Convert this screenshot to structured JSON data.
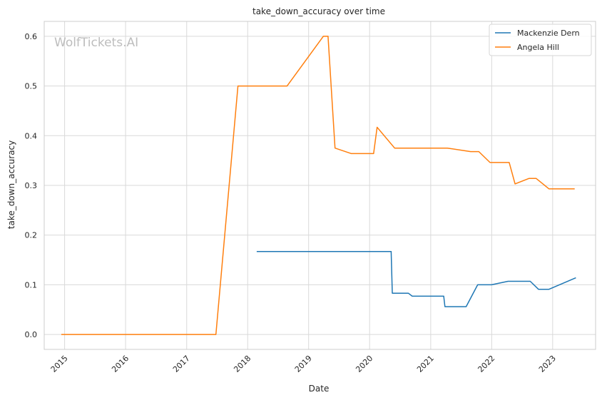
{
  "chart_data": {
    "type": "line",
    "title": "take_down_accuracy over time",
    "xlabel": "Date",
    "ylabel": "take_down_accuracy",
    "watermark": "WolfTickets.AI",
    "x_axis_type": "date",
    "xlim": [
      "2014-09-01",
      "2023-09-15"
    ],
    "ylim": [
      -0.03,
      0.63
    ],
    "x_ticks": [
      {
        "date": "2015-01-01",
        "label": "2015"
      },
      {
        "date": "2016-01-01",
        "label": "2016"
      },
      {
        "date": "2017-01-01",
        "label": "2017"
      },
      {
        "date": "2018-01-01",
        "label": "2018"
      },
      {
        "date": "2019-01-01",
        "label": "2019"
      },
      {
        "date": "2020-01-01",
        "label": "2020"
      },
      {
        "date": "2021-01-01",
        "label": "2021"
      },
      {
        "date": "2022-01-01",
        "label": "2022"
      },
      {
        "date": "2023-01-01",
        "label": "2023"
      }
    ],
    "y_ticks": [
      {
        "value": 0.0,
        "label": "0.0"
      },
      {
        "value": 0.1,
        "label": "0.1"
      },
      {
        "value": 0.2,
        "label": "0.2"
      },
      {
        "value": 0.3,
        "label": "0.3"
      },
      {
        "value": 0.4,
        "label": "0.4"
      },
      {
        "value": 0.5,
        "label": "0.5"
      },
      {
        "value": 0.6,
        "label": "0.6"
      }
    ],
    "grid": true,
    "legend_position": "top-right",
    "series": [
      {
        "name": "Mackenzie Dern",
        "color": "#1f77b4",
        "points": [
          [
            "2018-02-24",
            0.167
          ],
          [
            "2020-05-09",
            0.167
          ],
          [
            "2020-05-16",
            0.083
          ],
          [
            "2020-08-20",
            0.083
          ],
          [
            "2020-09-12",
            0.077
          ],
          [
            "2021-03-20",
            0.077
          ],
          [
            "2021-03-27",
            0.056
          ],
          [
            "2021-08-01",
            0.056
          ],
          [
            "2021-10-09",
            0.1
          ],
          [
            "2021-12-31",
            0.1
          ],
          [
            "2022-04-09",
            0.107
          ],
          [
            "2022-08-20",
            0.107
          ],
          [
            "2022-10-08",
            0.091
          ],
          [
            "2022-12-10",
            0.091
          ],
          [
            "2023-05-20",
            0.114
          ]
        ]
      },
      {
        "name": "Angela Hill",
        "color": "#ff7f0e",
        "points": [
          [
            "2014-12-12",
            0.0
          ],
          [
            "2017-06-25",
            0.0
          ],
          [
            "2017-11-04",
            0.5
          ],
          [
            "2018-08-25",
            0.5
          ],
          [
            "2019-03-30",
            0.6
          ],
          [
            "2019-04-27",
            0.6
          ],
          [
            "2019-06-08",
            0.375
          ],
          [
            "2019-09-14",
            0.364
          ],
          [
            "2020-01-25",
            0.364
          ],
          [
            "2020-02-15",
            0.417
          ],
          [
            "2020-05-30",
            0.375
          ],
          [
            "2021-04-10",
            0.375
          ],
          [
            "2021-08-28",
            0.368
          ],
          [
            "2021-10-16",
            0.368
          ],
          [
            "2021-12-22",
            0.346
          ],
          [
            "2022-04-16",
            0.346
          ],
          [
            "2022-05-21",
            0.303
          ],
          [
            "2022-08-13",
            0.314
          ],
          [
            "2022-09-24",
            0.314
          ],
          [
            "2022-12-10",
            0.293
          ],
          [
            "2023-05-13",
            0.293
          ]
        ]
      }
    ]
  }
}
